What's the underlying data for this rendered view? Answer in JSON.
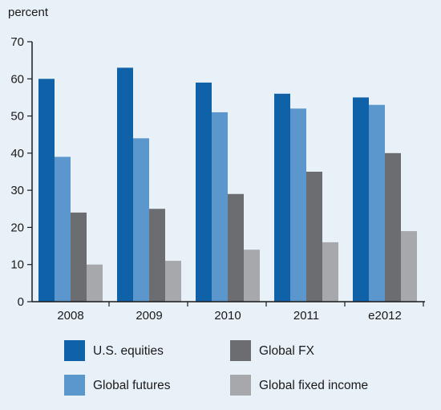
{
  "chart_data": {
    "type": "bar",
    "ylabel": "percent",
    "ylim": [
      0,
      70
    ],
    "yticks": [
      0,
      10,
      20,
      30,
      40,
      50,
      60,
      70
    ],
    "categories": [
      "2008",
      "2009",
      "2010",
      "2011",
      "e2012"
    ],
    "series": [
      {
        "name": "U.S. equities",
        "color": "#0f62a8",
        "values": [
          60,
          63,
          59,
          56,
          55
        ]
      },
      {
        "name": "Global futures",
        "color": "#5b97cc",
        "values": [
          39,
          44,
          51,
          52,
          53
        ]
      },
      {
        "name": "Global FX",
        "color": "#6b6d70",
        "values": [
          24,
          25,
          29,
          35,
          40
        ]
      },
      {
        "name": "Global fixed income",
        "color": "#a6a8ab",
        "values": [
          10,
          11,
          14,
          16,
          19
        ]
      }
    ],
    "legend_position": "bottom",
    "grid": false
  }
}
